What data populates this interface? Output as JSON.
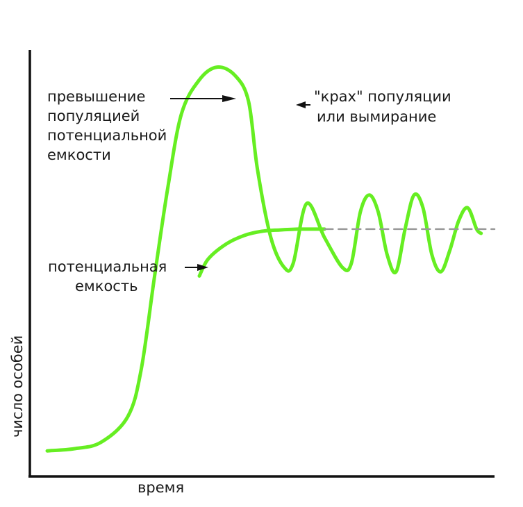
{
  "chart_data": {
    "type": "line",
    "title": "",
    "xlabel": "время",
    "ylabel": "число особей",
    "grid": false,
    "legend": "none",
    "xlim": [
      0,
      100
    ],
    "ylim": [
      0,
      100
    ],
    "series": [
      {
        "key": "actual",
        "color": "#66ee22",
        "x": [
          0,
          6,
          12,
          18,
          21,
          24,
          27,
          30,
          34,
          38,
          42,
          45,
          47,
          50,
          53,
          55,
          58,
          62,
          66,
          68,
          70,
          72,
          74,
          76,
          78,
          80,
          82,
          84,
          86,
          88,
          90,
          92,
          94,
          96,
          97
        ],
        "y": [
          6,
          6.5,
          8,
          14,
          25,
          47,
          68,
          85,
          93,
          96,
          94,
          88,
          72,
          56,
          49,
          50,
          64,
          56,
          49,
          50,
          62,
          66,
          62,
          52,
          48,
          58,
          66,
          63,
          52,
          48,
          53,
          60,
          63,
          58,
          57
        ]
      },
      {
        "key": "capacity",
        "color": "#66ee22",
        "x": [
          34,
          36,
          40,
          44,
          48,
          52,
          56,
          58,
          62
        ],
        "y": [
          47,
          51,
          54.5,
          56.5,
          57.5,
          57.8,
          58,
          58,
          58
        ]
      },
      {
        "key": "capacity-extension",
        "color": "#999999",
        "dashed": true,
        "x": [
          62,
          100
        ],
        "y": [
          58,
          58
        ]
      }
    ],
    "annotations": [
      {
        "key": "overshoot",
        "lines": [
          "превышение",
          "популяцией",
          "потенциальной",
          "емкости"
        ]
      },
      {
        "key": "crash",
        "lines": [
          "\"крах\" популяции",
          "или вымирание"
        ]
      },
      {
        "key": "capacity",
        "lines": [
          "потенциальная",
          "емкость"
        ]
      }
    ]
  }
}
